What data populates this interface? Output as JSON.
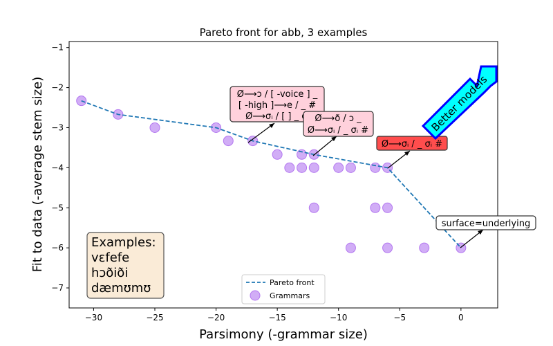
{
  "chart_data": {
    "type": "scatter",
    "title": "Pareto front for abb, 3 examples",
    "xlabel": "Parsimony (-grammar size)",
    "ylabel": "Fit to data (-average stem size)",
    "xlim": [
      -32,
      3
    ],
    "ylim": [
      -7.5,
      -0.85
    ],
    "xticks": [
      -30,
      -25,
      -20,
      -15,
      -10,
      -5,
      0
    ],
    "yticks": [
      -7,
      -6,
      -5,
      -4,
      -3,
      -2,
      -1
    ],
    "xtick_labels": [
      "−30",
      "−25",
      "−20",
      "−15",
      "−10",
      "−5",
      "0"
    ],
    "ytick_labels": [
      "−7",
      "−6",
      "−5",
      "−4",
      "−3",
      "−2",
      "−1"
    ],
    "grid": false,
    "legend_position": "bottom-center",
    "series": [
      {
        "name": "Pareto front",
        "kind": "line",
        "style": "dashed",
        "color": "#1f77b4",
        "points": [
          [
            -31,
            -2.33
          ],
          [
            -28,
            -2.67
          ],
          [
            -20,
            -3.0
          ],
          [
            -17,
            -3.33
          ],
          [
            -12,
            -3.67
          ],
          [
            -6,
            -4.0
          ],
          [
            0,
            -6.0
          ]
        ]
      },
      {
        "name": "Grammars",
        "kind": "scatter",
        "color": "#b377f0",
        "points": [
          [
            -31,
            -2.33
          ],
          [
            -28,
            -2.67
          ],
          [
            -25,
            -3.0
          ],
          [
            -20,
            -3.0
          ],
          [
            -19,
            -3.33
          ],
          [
            -17,
            -3.33
          ],
          [
            -15,
            -3.67
          ],
          [
            -13,
            -3.67
          ],
          [
            -12,
            -3.67
          ],
          [
            -14,
            -4.0
          ],
          [
            -13,
            -4.0
          ],
          [
            -12,
            -4.0
          ],
          [
            -10,
            -4.0
          ],
          [
            -9,
            -4.0
          ],
          [
            -7,
            -4.0
          ],
          [
            -6,
            -4.0
          ],
          [
            -12,
            -5.0
          ],
          [
            -7,
            -5.0
          ],
          [
            -6,
            -5.0
          ],
          [
            -9,
            -6.0
          ],
          [
            -6,
            -6.0
          ],
          [
            -3,
            -6.0
          ],
          [
            0,
            -6.0
          ]
        ]
      }
    ],
    "annotations": [
      {
        "lines": [
          "Ø⟶ɔ / [ -voice ] _",
          "[ -high ]⟶e / _ #",
          "Ø⟶σᵢ / [ ] _ σᵢ"
        ],
        "point": [
          -17,
          -3.33
        ],
        "fill": "#ffd1dc"
      },
      {
        "lines": [
          "Ø⟶ð / ɔ _",
          "Ø⟶σᵢ / _ σᵢ #"
        ],
        "point": [
          -12,
          -3.67
        ],
        "fill": "#ffd1dc"
      },
      {
        "lines": [
          "Ø⟶σᵢ / _ σᵢ #"
        ],
        "point": [
          -6,
          -4.0
        ],
        "fill": "#ff4d4d"
      },
      {
        "lines": [
          "surface=underlying"
        ],
        "point": [
          0,
          -6.0
        ],
        "fill": "#ffffff"
      }
    ],
    "arrow_label": "Better models",
    "arrow_fill": "#00ffff",
    "arrow_edge": "#0000ff",
    "examples_box": {
      "lines": [
        "Examples:",
        "vɛfefe",
        "hɔðiði",
        "dæmʊmʊ"
      ],
      "fill": "#faebd7"
    }
  }
}
